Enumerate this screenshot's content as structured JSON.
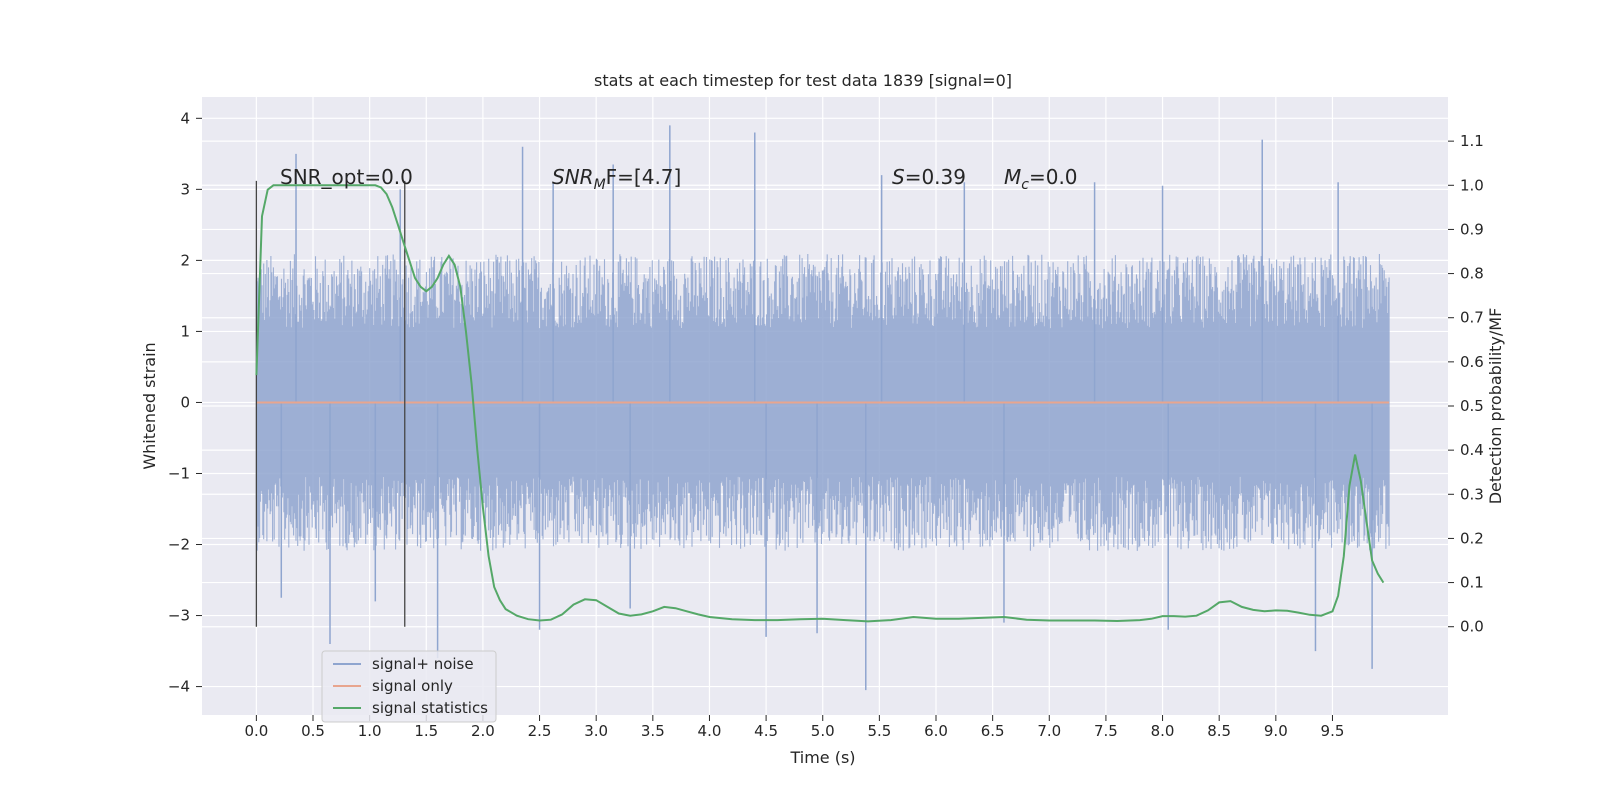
{
  "chart_data": {
    "type": "line",
    "title": "stats at each timestep for test data 1839 [signal=0]",
    "xlabel": "Time (s)",
    "ylabel": "Whitened strain",
    "y2label": "Detection probability/MF",
    "xlim": [
      -0.48,
      10.52
    ],
    "ylim": [
      -4.4,
      4.3
    ],
    "y2lim": [
      -0.2,
      1.2
    ],
    "x_ticks": [
      "0.0",
      "0.5",
      "1.0",
      "1.5",
      "2.0",
      "2.5",
      "3.0",
      "3.5",
      "4.0",
      "4.5",
      "5.0",
      "5.5",
      "6.0",
      "6.5",
      "7.0",
      "7.5",
      "8.0",
      "8.5",
      "9.0",
      "9.5"
    ],
    "y_ticks": [
      "4",
      "3",
      "2",
      "1",
      "0",
      "−1",
      "−2",
      "−3",
      "−4"
    ],
    "y2_ticks": [
      "1.1",
      "1.0",
      "0.9",
      "0.8",
      "0.7",
      "0.6",
      "0.5",
      "0.4",
      "0.3",
      "0.2",
      "0.1",
      "0.0"
    ],
    "grid": true,
    "legend_position": "lower-left",
    "annotations": {
      "snr_opt": "SNR_opt=0.0",
      "snr_mf_base": "SNR",
      "snr_mf_sub": "M",
      "snr_mf_tail": "F=[4.7]",
      "s_label": "S",
      "s_value": "=0.39",
      "mc_base": "M",
      "mc_sub": "c",
      "mc_value": "=0.0"
    },
    "vertical_markers_x": [
      0.0,
      1.31
    ],
    "series": [
      {
        "name": "signal+ noise",
        "color": "#8fa5cf",
        "x_range": [
          0.0,
          10.0
        ],
        "envelope_typical": [
          -1.9,
          1.9
        ],
        "peaks_high": [
          [
            0.35,
            3.5
          ],
          [
            1.27,
            3.0
          ],
          [
            2.35,
            3.6
          ],
          [
            2.62,
            3.1
          ],
          [
            3.15,
            3.35
          ],
          [
            3.65,
            3.9
          ],
          [
            4.4,
            3.8
          ],
          [
            5.52,
            3.2
          ],
          [
            6.25,
            3.1
          ],
          [
            7.4,
            3.1
          ],
          [
            8.0,
            3.05
          ],
          [
            8.88,
            3.7
          ],
          [
            9.55,
            3.1
          ]
        ],
        "peaks_low": [
          [
            0.22,
            -2.75
          ],
          [
            0.65,
            -3.4
          ],
          [
            1.05,
            -2.8
          ],
          [
            1.6,
            -3.6
          ],
          [
            2.5,
            -3.2
          ],
          [
            3.3,
            -2.9
          ],
          [
            4.5,
            -3.3
          ],
          [
            4.95,
            -3.25
          ],
          [
            5.38,
            -4.05
          ],
          [
            6.6,
            -3.1
          ],
          [
            8.05,
            -3.2
          ],
          [
            9.35,
            -3.5
          ],
          [
            9.85,
            -3.75
          ]
        ]
      },
      {
        "name": "signal only",
        "color": "#e8a58e",
        "x": [
          0.0,
          10.0
        ],
        "y": [
          0.0,
          0.0
        ]
      },
      {
        "name": "signal statistics",
        "color": "#55a868",
        "axis": "right",
        "x": [
          0.0,
          0.05,
          0.1,
          0.15,
          0.2,
          0.3,
          0.4,
          0.5,
          0.6,
          0.7,
          0.8,
          0.9,
          1.0,
          1.05,
          1.1,
          1.15,
          1.2,
          1.25,
          1.3,
          1.35,
          1.4,
          1.45,
          1.5,
          1.55,
          1.6,
          1.65,
          1.7,
          1.75,
          1.8,
          1.85,
          1.9,
          1.95,
          2.0,
          2.05,
          2.1,
          2.15,
          2.2,
          2.3,
          2.4,
          2.5,
          2.6,
          2.7,
          2.8,
          2.9,
          3.0,
          3.1,
          3.2,
          3.3,
          3.4,
          3.5,
          3.6,
          3.7,
          3.8,
          3.9,
          4.0,
          4.2,
          4.4,
          4.6,
          4.8,
          5.0,
          5.2,
          5.4,
          5.6,
          5.8,
          6.0,
          6.2,
          6.4,
          6.6,
          6.8,
          7.0,
          7.2,
          7.4,
          7.6,
          7.8,
          7.9,
          8.0,
          8.1,
          8.2,
          8.3,
          8.4,
          8.5,
          8.6,
          8.7,
          8.8,
          8.9,
          9.0,
          9.1,
          9.2,
          9.3,
          9.4,
          9.5,
          9.55,
          9.6,
          9.65,
          9.7,
          9.75,
          9.8,
          9.85,
          9.9,
          9.95
        ],
        "y": [
          0.57,
          0.93,
          0.99,
          1.0,
          1.0,
          1.0,
          1.0,
          1.0,
          1.0,
          1.0,
          1.0,
          1.0,
          1.0,
          1.0,
          0.995,
          0.98,
          0.95,
          0.91,
          0.87,
          0.83,
          0.79,
          0.77,
          0.76,
          0.77,
          0.79,
          0.82,
          0.84,
          0.82,
          0.77,
          0.67,
          0.55,
          0.4,
          0.27,
          0.16,
          0.09,
          0.06,
          0.04,
          0.025,
          0.017,
          0.014,
          0.016,
          0.028,
          0.05,
          0.062,
          0.06,
          0.045,
          0.03,
          0.025,
          0.028,
          0.035,
          0.045,
          0.042,
          0.035,
          0.028,
          0.022,
          0.017,
          0.015,
          0.015,
          0.017,
          0.018,
          0.015,
          0.012,
          0.015,
          0.022,
          0.018,
          0.018,
          0.02,
          0.022,
          0.016,
          0.014,
          0.014,
          0.014,
          0.013,
          0.015,
          0.018,
          0.024,
          0.024,
          0.023,
          0.025,
          0.037,
          0.055,
          0.058,
          0.045,
          0.038,
          0.035,
          0.037,
          0.036,
          0.032,
          0.027,
          0.025,
          0.035,
          0.07,
          0.16,
          0.32,
          0.39,
          0.33,
          0.24,
          0.15,
          0.12,
          0.1
        ]
      }
    ]
  }
}
